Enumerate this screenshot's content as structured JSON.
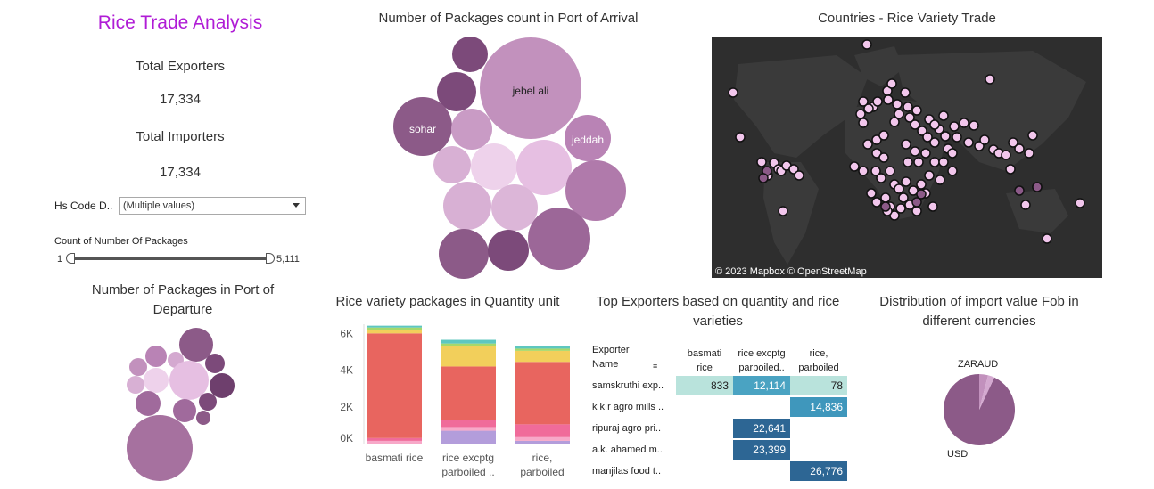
{
  "dashboard": {
    "title": "Rice Trade Analysis",
    "total_exporters_label": "Total Exporters",
    "total_exporters_value": "17,334",
    "total_importers_label": "Total Importers",
    "total_importers_value": "17,334",
    "hs_code_label": "Hs Code D..",
    "hs_code_value": "(Multiple values)",
    "packages_filter_label": "Count of Number Of Packages",
    "packages_min": "1",
    "packages_max": "5,111"
  },
  "arrival_bubbles": {
    "title": "Number of Packages count in Port of Arrival",
    "labels": {
      "jebel_ali": "jebel ali",
      "sohar": "sohar",
      "jeddah": "jeddah"
    }
  },
  "map": {
    "title": "Countries - Rice Variety Trade",
    "attribution": "© 2023 Mapbox  © OpenStreetMap"
  },
  "departure_bubbles": {
    "title": "Number of Packages  in Port of Departure"
  },
  "chart_data": [
    {
      "type": "bar",
      "title": "Rice variety packages in Quantity unit",
      "categories": [
        "basmati rice",
        "rice excptg parboiled ..",
        "rice, parboiled"
      ],
      "category_lines": [
        [
          "basmati rice"
        ],
        [
          "rice excptg",
          "parboiled .."
        ],
        [
          "rice,",
          "parboiled"
        ]
      ],
      "yticks": [
        "6K",
        "4K",
        "2K",
        "0K"
      ],
      "ylim": [
        0,
        6500
      ],
      "stacks": [
        [
          {
            "v": 150,
            "c": "#f7a8c8"
          },
          {
            "v": 150,
            "c": "#f06b9a"
          },
          {
            "v": 5700,
            "c": "#e8655f"
          },
          {
            "v": 200,
            "c": "#f2cf5b"
          },
          {
            "v": 120,
            "c": "#a5d86b"
          },
          {
            "v": 100,
            "c": "#5ec7c0"
          }
        ],
        [
          {
            "v": 700,
            "c": "#b39ddb"
          },
          {
            "v": 200,
            "c": "#f7a8c8"
          },
          {
            "v": 400,
            "c": "#f06b9a"
          },
          {
            "v": 2900,
            "c": "#e8655f"
          },
          {
            "v": 1100,
            "c": "#f2cf5b"
          },
          {
            "v": 150,
            "c": "#a5d86b"
          },
          {
            "v": 200,
            "c": "#5ec7c0"
          }
        ],
        [
          {
            "v": 150,
            "c": "#b39ddb"
          },
          {
            "v": 200,
            "c": "#f7a8c8"
          },
          {
            "v": 700,
            "c": "#f06b9a"
          },
          {
            "v": 3400,
            "c": "#e8655f"
          },
          {
            "v": 600,
            "c": "#f2cf5b"
          },
          {
            "v": 120,
            "c": "#a5d86b"
          },
          {
            "v": 150,
            "c": "#5ec7c0"
          }
        ]
      ]
    },
    {
      "type": "table",
      "title": "Top Exporters based on quantity and rice varieties",
      "row_header": "Exporter Name",
      "columns": [
        "basmati rice",
        "rice excptg parboiled..",
        "rice, parboiled"
      ],
      "column_lines": [
        [
          "basmati",
          "rice"
        ],
        [
          "rice excptg",
          "parboiled.."
        ],
        [
          "rice,",
          "parboiled"
        ]
      ],
      "rows": [
        {
          "name": "samskruthi exp..",
          "values": [
            "833",
            "12,114",
            "78"
          ]
        },
        {
          "name": "k k r agro mills ..",
          "values": [
            "",
            "",
            "14,836"
          ]
        },
        {
          "name": "ripuraj agro pri..",
          "values": [
            "",
            "22,641",
            ""
          ]
        },
        {
          "name": "a.k. ahamed m..",
          "values": [
            "",
            "23,399",
            ""
          ]
        },
        {
          "name": "manjilas food t..",
          "values": [
            "",
            "",
            "26,776"
          ]
        }
      ]
    },
    {
      "type": "pie",
      "title": "Distribution of import value Fob in different currencies",
      "slices": [
        {
          "name": "USD",
          "value": 93,
          "color": "#8c5a88"
        },
        {
          "name": "ZAR",
          "value": 4,
          "color": "#c291bd"
        },
        {
          "name": "AUD",
          "value": 3,
          "color": "#d4a9d0"
        }
      ],
      "labels": {
        "zar_aud": "ZARAUD",
        "usd": "USD"
      }
    }
  ]
}
